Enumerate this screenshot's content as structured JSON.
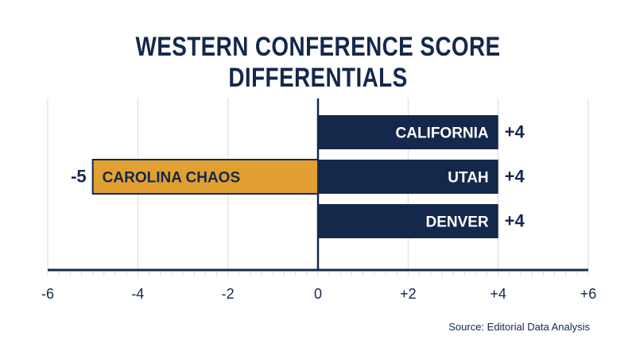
{
  "chart_data": {
    "type": "bar",
    "orientation": "horizontal",
    "title": "WESTERN CONFERENCE SCORE DIFFERENTIALS",
    "source": "Source: Editorial Data Analysis",
    "xlim": [
      -6,
      6
    ],
    "ticks": [
      {
        "value": -6,
        "label": "-6"
      },
      {
        "value": -4,
        "label": "-4"
      },
      {
        "value": -2,
        "label": "-2"
      },
      {
        "value": 0,
        "label": "0"
      },
      {
        "value": 2,
        "label": "+2"
      },
      {
        "value": 4,
        "label": "+4"
      },
      {
        "value": 6,
        "label": "+6"
      }
    ],
    "grid": true,
    "bars": [
      {
        "category": "CALIFORNIA",
        "value": 4,
        "value_label": "+4",
        "color": "#14284b"
      },
      {
        "category": "CAROLINA CHAOS",
        "value": -5,
        "value_label": "-5",
        "color": "#e2a033"
      },
      {
        "category": "UTAH",
        "value": 4,
        "value_label": "+4",
        "color": "#14284b"
      },
      {
        "category": "DENVER",
        "value": 4,
        "value_label": "+4",
        "color": "#14284b"
      }
    ],
    "bar_rows": [
      0,
      1,
      1,
      2
    ]
  },
  "colors": {
    "navy": "#14284b",
    "gold": "#e2a033",
    "grid": "#d9d9d9",
    "bar_label_on_navy": "#ffffff",
    "bar_label_on_gold": "#14284b"
  }
}
